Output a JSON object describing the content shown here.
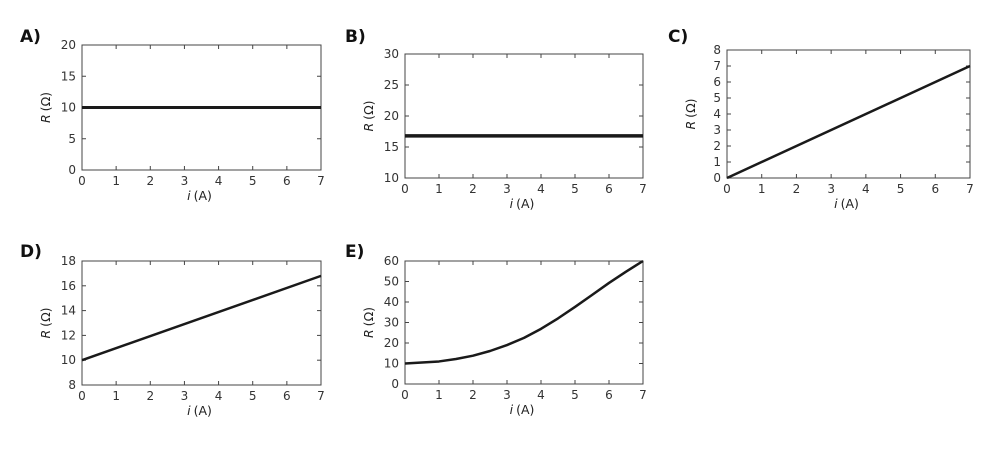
{
  "chart_data": [
    {
      "type": "line",
      "panel_label": "A)",
      "xlabel_italic": "i",
      "xlabel_unit": "(A)",
      "ylabel_italic": "R",
      "ylabel_unit": "(Ω)",
      "xlim": [
        0,
        7
      ],
      "ylim": [
        0,
        20
      ],
      "xticks": [
        "0",
        "1",
        "2",
        "3",
        "4",
        "5",
        "6",
        "7"
      ],
      "yticks": [
        "0",
        "5",
        "10",
        "15",
        "20"
      ],
      "x": [
        0,
        7
      ],
      "y": [
        10,
        10
      ]
    },
    {
      "type": "line",
      "panel_label": "B)",
      "xlabel_italic": "i",
      "xlabel_unit": "(A)",
      "ylabel_italic": "R",
      "ylabel_unit": "(Ω)",
      "xlim": [
        0,
        7
      ],
      "ylim": [
        10,
        30
      ],
      "xticks": [
        "0",
        "1",
        "2",
        "3",
        "4",
        "5",
        "6",
        "7"
      ],
      "yticks": [
        "10",
        "15",
        "20",
        "25",
        "30"
      ],
      "x": [
        0,
        7
      ],
      "y": [
        16.8,
        16.8
      ]
    },
    {
      "type": "line",
      "panel_label": "C)",
      "xlabel_italic": "i",
      "xlabel_unit": "(A)",
      "ylabel_italic": "R",
      "ylabel_unit": "(Ω)",
      "xlim": [
        0,
        7
      ],
      "ylim": [
        0,
        8
      ],
      "xticks": [
        "0",
        "1",
        "2",
        "3",
        "4",
        "5",
        "6",
        "7"
      ],
      "yticks": [
        "0",
        "1",
        "2",
        "3",
        "4",
        "5",
        "6",
        "7",
        "8"
      ],
      "x": [
        0,
        7
      ],
      "y": [
        0,
        7
      ]
    },
    {
      "type": "line",
      "panel_label": "D)",
      "xlabel_italic": "i",
      "xlabel_unit": "(A)",
      "ylabel_italic": "R",
      "ylabel_unit": "(Ω)",
      "xlim": [
        0,
        7
      ],
      "ylim": [
        8,
        18
      ],
      "xticks": [
        "0",
        "1",
        "2",
        "3",
        "4",
        "5",
        "6",
        "7"
      ],
      "yticks": [
        "8",
        "10",
        "12",
        "14",
        "16",
        "18"
      ],
      "x": [
        0,
        7
      ],
      "y": [
        10,
        16.8
      ]
    },
    {
      "type": "line",
      "panel_label": "E)",
      "xlabel_italic": "i",
      "xlabel_unit": "(A)",
      "ylabel_italic": "R",
      "ylabel_unit": "(Ω)",
      "xlim": [
        0,
        7
      ],
      "ylim": [
        0,
        60
      ],
      "xticks": [
        "0",
        "1",
        "2",
        "3",
        "4",
        "5",
        "6",
        "7"
      ],
      "yticks": [
        "0",
        "10",
        "20",
        "30",
        "40",
        "50",
        "60"
      ],
      "x": [
        0,
        0.5,
        1,
        1.5,
        2,
        2.5,
        3,
        3.5,
        4,
        4.5,
        5,
        5.5,
        6,
        6.5,
        7
      ],
      "y": [
        10,
        10.5,
        11,
        12.2,
        13.8,
        16.1,
        19,
        22.5,
        26.9,
        32,
        37.6,
        43.4,
        49.3,
        54.8,
        60
      ]
    }
  ]
}
